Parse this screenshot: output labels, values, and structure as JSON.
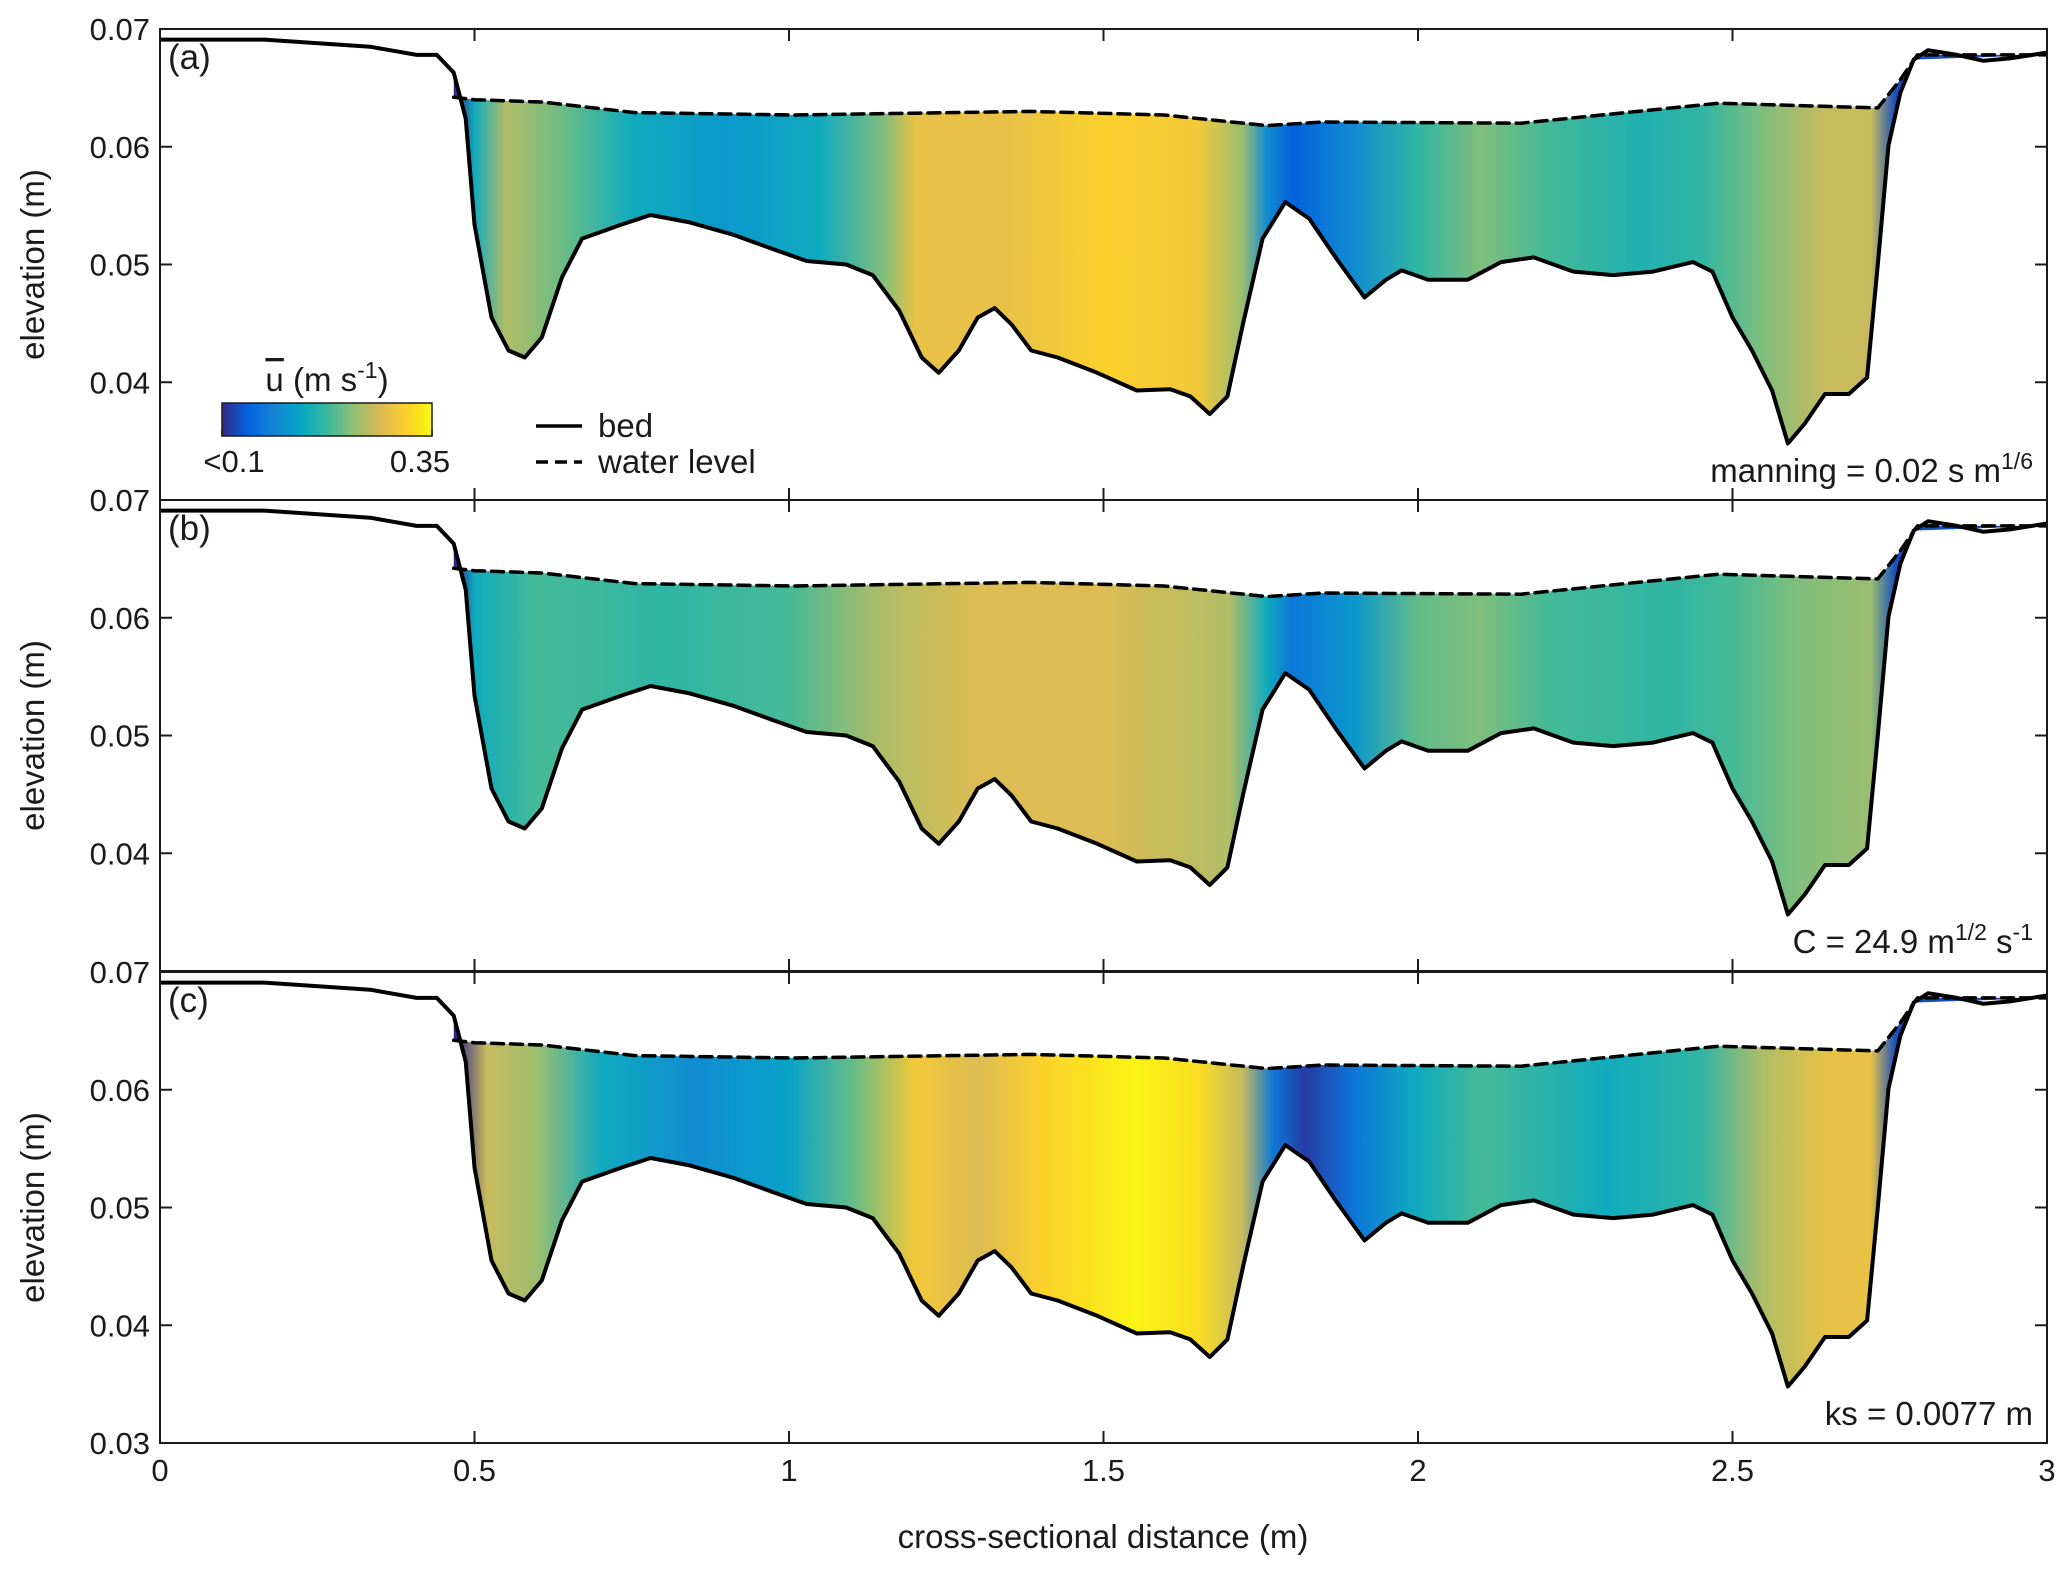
{
  "chart_data": {
    "type": "area",
    "xlabel": "cross-sectional distance (m)",
    "ylabel": "elevation (m)",
    "xlim": [
      0,
      3
    ],
    "xticks": [
      0,
      0.5,
      1,
      1.5,
      2,
      2.5,
      3
    ],
    "ylim": [
      0.03,
      0.07
    ],
    "series": [
      {
        "name": "bed",
        "color": "#000000",
        "style": "solid",
        "x": [
          0,
          0.166,
          0.334,
          0.408,
          0.44,
          0.467,
          0.486,
          0.5,
          0.527,
          0.554,
          0.58,
          0.607,
          0.639,
          0.671,
          0.734,
          0.78,
          0.84,
          0.913,
          0.975,
          1.028,
          1.091,
          1.133,
          1.175,
          1.211,
          1.238,
          1.27,
          1.3,
          1.327,
          1.354,
          1.385,
          1.427,
          1.49,
          1.553,
          1.606,
          1.638,
          1.669,
          1.697,
          1.722,
          1.753,
          1.789,
          1.827,
          1.869,
          1.915,
          1.949,
          1.974,
          2.016,
          2.079,
          2.132,
          2.184,
          2.247,
          2.31,
          2.374,
          2.437,
          2.468,
          2.5,
          2.531,
          2.563,
          2.588,
          2.615,
          2.647,
          2.685,
          2.714,
          2.731,
          2.748,
          2.767,
          2.788,
          2.811,
          2.857,
          2.899,
          2.941,
          3
        ],
        "values": [
          0.0691,
          0.0691,
          0.0685,
          0.0678,
          0.0678,
          0.0663,
          0.0624,
          0.0534,
          0.0455,
          0.0427,
          0.0421,
          0.0438,
          0.0489,
          0.0522,
          0.0534,
          0.0542,
          0.0536,
          0.0525,
          0.0513,
          0.0503,
          0.05,
          0.0491,
          0.0461,
          0.0421,
          0.0408,
          0.0427,
          0.0455,
          0.0463,
          0.0449,
          0.0427,
          0.0421,
          0.0408,
          0.0393,
          0.0394,
          0.0388,
          0.0373,
          0.0388,
          0.045,
          0.0522,
          0.0553,
          0.0539,
          0.0506,
          0.0472,
          0.0487,
          0.0495,
          0.0487,
          0.0487,
          0.0502,
          0.0506,
          0.0494,
          0.0491,
          0.0494,
          0.0502,
          0.0494,
          0.0455,
          0.0427,
          0.0393,
          0.0348,
          0.0365,
          0.039,
          0.039,
          0.0404,
          0.05,
          0.0601,
          0.0646,
          0.0674,
          0.0682,
          0.0678,
          0.0673,
          0.0675,
          0.068
        ]
      },
      {
        "name": "water level",
        "color": "#000000",
        "style": "dashed",
        "x": [
          0.467,
          0.5,
          0.607,
          0.755,
          1.007,
          1.385,
          1.596,
          1.76,
          1.848,
          2.163,
          2.478,
          2.731,
          2.767,
          2.794,
          3
        ],
        "values": [
          0.0642,
          0.064,
          0.0638,
          0.0629,
          0.0627,
          0.063,
          0.0627,
          0.0618,
          0.0621,
          0.062,
          0.0637,
          0.0633,
          0.0657,
          0.0678,
          0.0678
        ]
      }
    ],
    "colorbar": {
      "label": [
        "u",
        " (m s",
        "-1",
        ")"
      ],
      "clim": [
        0.1,
        0.35
      ],
      "ticks": [
        {
          "value": 0.1,
          "label": "<0.1"
        },
        {
          "value": 0.35,
          "label": "0.35"
        }
      ],
      "colormap": [
        "#352a87",
        "#0363e1",
        "#1485d4",
        "#06a7c6",
        "#38b99e",
        "#92bf73",
        "#d9ba56",
        "#fcce2e",
        "#f9fb0e"
      ]
    },
    "panels": [
      {
        "label": "(a)",
        "annotation": [
          "manning = 0.02 s m",
          "1/6"
        ],
        "yticks": [
          0.04,
          0.05,
          0.06,
          0.07
        ],
        "velocity": {
          "x": [
            0.47,
            0.5,
            0.55,
            0.65,
            0.75,
            0.9,
            1.05,
            1.15,
            1.2,
            1.35,
            1.5,
            1.65,
            1.72,
            1.76,
            1.8,
            1.9,
            2.0,
            2.1,
            2.2,
            2.35,
            2.45,
            2.55,
            2.65,
            2.72,
            2.76
          ],
          "values": [
            0.1,
            0.2,
            0.27,
            0.24,
            0.2,
            0.18,
            0.2,
            0.25,
            0.3,
            0.3,
            0.32,
            0.31,
            0.26,
            0.17,
            0.13,
            0.17,
            0.22,
            0.25,
            0.23,
            0.21,
            0.22,
            0.25,
            0.28,
            0.28,
            0.12
          ]
        }
      },
      {
        "label": "(b)",
        "annotation": [
          "C = 24.9 m",
          "1/2",
          " s",
          "-1"
        ],
        "yticks": [
          0.04,
          0.05,
          0.06,
          0.07
        ],
        "velocity": {
          "x": [
            0.47,
            0.5,
            0.6,
            0.8,
            1.0,
            1.15,
            1.3,
            1.5,
            1.7,
            1.76,
            1.8,
            1.9,
            2.0,
            2.1,
            2.2,
            2.4,
            2.5,
            2.6,
            2.72,
            2.76
          ],
          "values": [
            0.1,
            0.2,
            0.23,
            0.22,
            0.23,
            0.27,
            0.29,
            0.29,
            0.27,
            0.2,
            0.15,
            0.18,
            0.24,
            0.25,
            0.23,
            0.22,
            0.23,
            0.25,
            0.26,
            0.12
          ]
        }
      },
      {
        "label": "(c)",
        "annotation": [
          "ks = 0.0077 m"
        ],
        "yticks": [
          0.03,
          0.04,
          0.05,
          0.06,
          0.07
        ],
        "velocity": {
          "x": [
            0.47,
            0.52,
            0.6,
            0.7,
            0.85,
            1.0,
            1.1,
            1.2,
            1.3,
            1.4,
            1.55,
            1.65,
            1.72,
            1.77,
            1.82,
            1.9,
            2.0,
            2.1,
            2.3,
            2.45,
            2.55,
            2.65,
            2.72,
            2.76
          ],
          "values": [
            0.1,
            0.28,
            0.26,
            0.2,
            0.17,
            0.19,
            0.24,
            0.31,
            0.29,
            0.32,
            0.345,
            0.33,
            0.28,
            0.15,
            0.11,
            0.15,
            0.2,
            0.23,
            0.2,
            0.22,
            0.27,
            0.3,
            0.3,
            0.12
          ]
        }
      }
    ]
  }
}
